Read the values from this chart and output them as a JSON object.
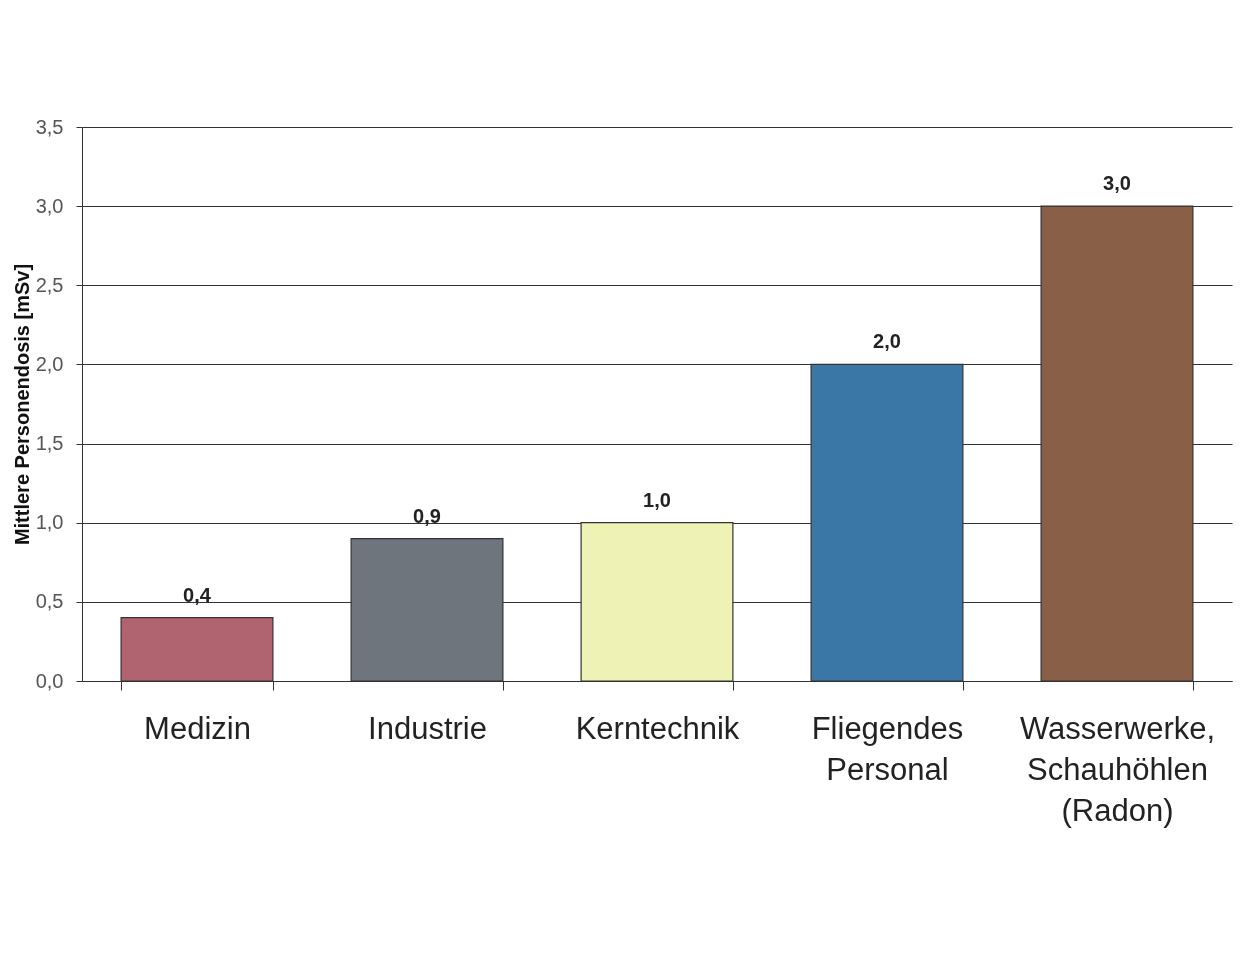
{
  "chart_data": {
    "type": "bar",
    "ylabel": "Mittlere Personendosis [mSv]",
    "categories": [
      "Medizin",
      "Industrie",
      "Kerntechnik",
      "Fliegendes Personal",
      "Wasserwerke, Schauhöhlen (Radon)"
    ],
    "values": [
      0.4,
      0.9,
      1.0,
      2.0,
      3.0
    ],
    "value_labels": [
      "0,4",
      "0,9",
      "1,0",
      "2,0",
      "3,0"
    ],
    "colors": [
      "#b0646f",
      "#6e757c",
      "#eef2b4",
      "#3a76a6",
      "#8a5f47"
    ],
    "ylim": [
      0,
      3.5
    ],
    "yticks": [
      {
        "value": 0,
        "label": "0,0"
      },
      {
        "value": 0.5,
        "label": "0,5"
      },
      {
        "value": 1,
        "label": "1,0"
      },
      {
        "value": 1.5,
        "label": "1,5"
      },
      {
        "value": 2,
        "label": "2,0"
      },
      {
        "value": 2.5,
        "label": "2,5"
      },
      {
        "value": 3,
        "label": "3,0"
      },
      {
        "value": 3.5,
        "label": "3,5"
      }
    ],
    "grid": "y"
  }
}
